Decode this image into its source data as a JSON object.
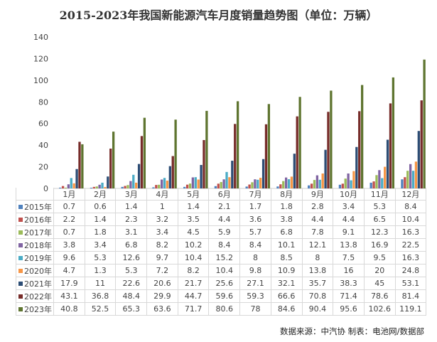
{
  "footer": "数据来源：中汽协  制表：电池网/数据部",
  "chart_data": {
    "type": "bar",
    "title": "2015-2023年我国新能源汽车月度销量趋势图（单位：万辆）",
    "categories": [
      "1月",
      "2月",
      "3月",
      "4月",
      "5月",
      "6月",
      "7月",
      "8月",
      "9月",
      "10月",
      "11月",
      "12月"
    ],
    "ylim": [
      0,
      140
    ],
    "yticks": [
      0,
      20,
      40,
      60,
      80,
      100,
      120,
      140
    ],
    "grid": false,
    "legend": "table-left",
    "series": [
      {
        "name": "2015年",
        "color": "#4F81BD",
        "values": [
          0.7,
          0.6,
          1.4,
          1.0,
          1.4,
          2.1,
          1.7,
          1.8,
          2.8,
          3.4,
          5.3,
          8.4
        ]
      },
      {
        "name": "2016年",
        "color": "#C0504D",
        "values": [
          2.2,
          1.4,
          2.3,
          3.2,
          3.5,
          4.4,
          3.6,
          3.8,
          4.4,
          4.4,
          6.5,
          10.4
        ]
      },
      {
        "name": "2017年",
        "color": "#9BBB59",
        "values": [
          0.7,
          1.8,
          3.1,
          3.4,
          4.5,
          5.9,
          5.7,
          6.8,
          7.8,
          9.1,
          12.3,
          16.3
        ]
      },
      {
        "name": "2018年",
        "color": "#8064A2",
        "values": [
          3.8,
          3.4,
          6.8,
          8.2,
          10.2,
          8.4,
          8.4,
          10.1,
          12.1,
          13.8,
          16.9,
          22.5
        ]
      },
      {
        "name": "2019年",
        "color": "#4BACC6",
        "values": [
          9.6,
          5.3,
          12.6,
          9.7,
          10.4,
          15.2,
          8,
          8.5,
          8,
          7.5,
          9.5,
          16.3
        ]
      },
      {
        "name": "2020年",
        "color": "#F79646",
        "values": [
          4.7,
          1.3,
          5.3,
          7.2,
          8.2,
          10.4,
          9.8,
          10.9,
          13.8,
          16,
          20,
          24.8
        ]
      },
      {
        "name": "2021年",
        "color": "#2C4D75",
        "values": [
          17.9,
          11,
          22.6,
          20.6,
          21.7,
          25.6,
          27.1,
          32.1,
          35.7,
          38.3,
          45,
          53.1
        ]
      },
      {
        "name": "2022年",
        "color": "#772C2A",
        "values": [
          43.1,
          36.8,
          48.4,
          29.9,
          44.7,
          59.6,
          59.3,
          66.6,
          70.8,
          71.4,
          78.6,
          81.4
        ]
      },
      {
        "name": "2023年",
        "color": "#5F7530",
        "values": [
          40.8,
          52.5,
          65.3,
          63.6,
          71.7,
          80.6,
          78,
          84.6,
          90.4,
          95.6,
          102.6,
          119.1
        ]
      }
    ]
  }
}
